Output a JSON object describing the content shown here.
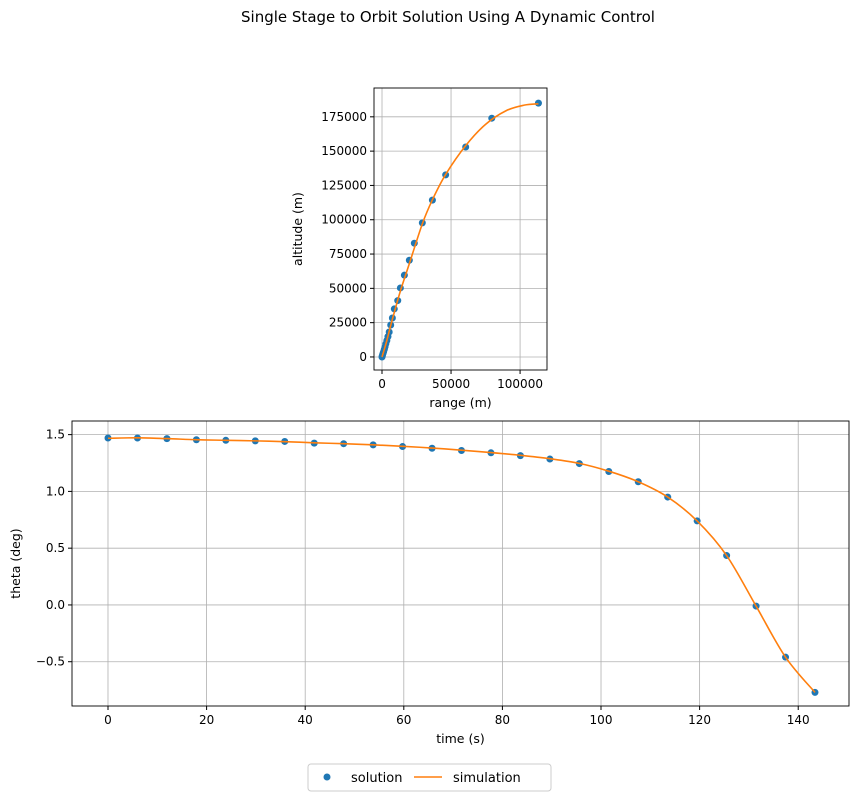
{
  "title": "Single Stage to Orbit Solution Using A Dynamic Control",
  "legend": {
    "placement": "bottom-center",
    "entries": [
      "solution",
      "simulation"
    ]
  },
  "colors": {
    "solution": "#1f77b4",
    "simulation": "#ff7f0e",
    "grid": "#b0b0b0"
  },
  "chart_data": [
    {
      "type": "line",
      "xlabel": "range (m)",
      "ylabel": "altitude (m)",
      "xlim": [
        -5800,
        119500
      ],
      "ylim": [
        -9500,
        196000
      ],
      "xticks": [
        0,
        50000,
        100000
      ],
      "yticks": [
        0,
        25000,
        50000,
        75000,
        100000,
        125000,
        150000,
        175000
      ],
      "grid": true,
      "series": [
        {
          "name": "solution",
          "style": "markers",
          "x": [
            0,
            150,
            400,
            800,
            1200,
            1700,
            2200,
            2800,
            3500,
            4300,
            5200,
            6300,
            7500,
            8900,
            11400,
            13300,
            16200,
            19800,
            23400,
            29200,
            36500,
            46100,
            60600,
            79500,
            113300
          ],
          "y": [
            0,
            500,
            1500,
            2700,
            4000,
            5600,
            7400,
            9600,
            12000,
            14800,
            18200,
            23300,
            28400,
            35000,
            41100,
            50300,
            59600,
            70500,
            82900,
            97700,
            114300,
            132700,
            153000,
            174000,
            185000
          ]
        },
        {
          "name": "simulation",
          "style": "line",
          "x": [
            0,
            1200,
            3500,
            6300,
            8900,
            13300,
            19800,
            29200,
            36500,
            46100,
            60600,
            75000,
            90000,
            103000,
            113300
          ],
          "y": [
            0,
            4000,
            12000,
            23000,
            32500,
            48000,
            68000,
            97000,
            114500,
            133000,
            154000,
            169500,
            179500,
            183500,
            184500
          ]
        }
      ]
    },
    {
      "type": "line",
      "xlabel": "time (s)",
      "ylabel": "theta (deg)",
      "xlim": [
        -7.3,
        150.3
      ],
      "ylim": [
        -0.89,
        1.62
      ],
      "xticks": [
        0,
        20,
        40,
        60,
        80,
        100,
        120,
        140
      ],
      "yticks": [
        -0.5,
        0.0,
        0.5,
        1.0,
        1.5
      ],
      "grid": true,
      "series": [
        {
          "name": "solution",
          "style": "markers",
          "x": [
            0,
            5.98,
            11.95,
            17.93,
            23.9,
            29.88,
            35.85,
            41.83,
            47.8,
            53.78,
            59.75,
            65.73,
            71.7,
            77.68,
            83.65,
            89.63,
            95.6,
            101.58,
            107.55,
            113.53,
            119.5,
            125.48,
            131.45,
            137.43,
            143.4
          ],
          "y": [
            1.47,
            1.47,
            1.465,
            1.455,
            1.45,
            1.445,
            1.44,
            1.425,
            1.42,
            1.41,
            1.395,
            1.38,
            1.36,
            1.34,
            1.315,
            1.285,
            1.245,
            1.175,
            1.085,
            0.95,
            0.74,
            0.435,
            -0.01,
            -0.46,
            -0.77
          ]
        },
        {
          "name": "simulation",
          "style": "line",
          "x": [
            0,
            5.98,
            11.95,
            17.93,
            23.9,
            29.88,
            35.85,
            41.83,
            47.8,
            53.78,
            59.75,
            65.73,
            71.7,
            77.68,
            83.65,
            89.63,
            95.6,
            101.58,
            107.55,
            113.53,
            119.5,
            125.48,
            131.45,
            137.43,
            143.4
          ],
          "y": [
            1.468,
            1.472,
            1.465,
            1.455,
            1.45,
            1.445,
            1.438,
            1.428,
            1.42,
            1.41,
            1.397,
            1.382,
            1.363,
            1.342,
            1.318,
            1.288,
            1.247,
            1.178,
            1.085,
            0.95,
            0.74,
            0.435,
            -0.01,
            -0.46,
            -0.77
          ]
        }
      ]
    }
  ]
}
